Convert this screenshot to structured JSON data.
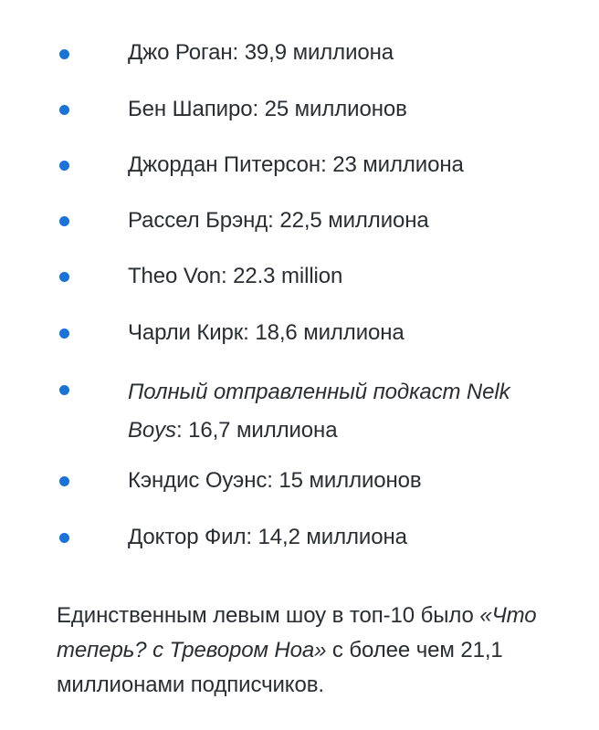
{
  "bullet_color": "#1a73d9",
  "items": [
    {
      "text": "Джо Роган: 39,9 миллиона"
    },
    {
      "text": "Бен Шапиро: 25 миллионов"
    },
    {
      "text": "Джордан Питерсон: 23 миллиона"
    },
    {
      "text": "Рассел Брэнд: 22,5 миллиона"
    },
    {
      "text": "Theo Von: 22.3 million"
    },
    {
      "text": "Чарли Кирк: 18,6 миллиона"
    },
    {
      "italic": "Полный отправленный подкаст Nelk Boys",
      "text": ": 16,7 миллиона"
    },
    {
      "text": "Кэндис Оуэнс: 15 миллионов"
    },
    {
      "text": "Доктор Фил: 14,2 миллиона"
    }
  ],
  "summary": {
    "before": "Единственным левым шоу в топ-10 было ",
    "italic": "«Что теперь? с Тревором Ноа»",
    "after": " с более чем 21,1 миллионами подписчиков."
  }
}
